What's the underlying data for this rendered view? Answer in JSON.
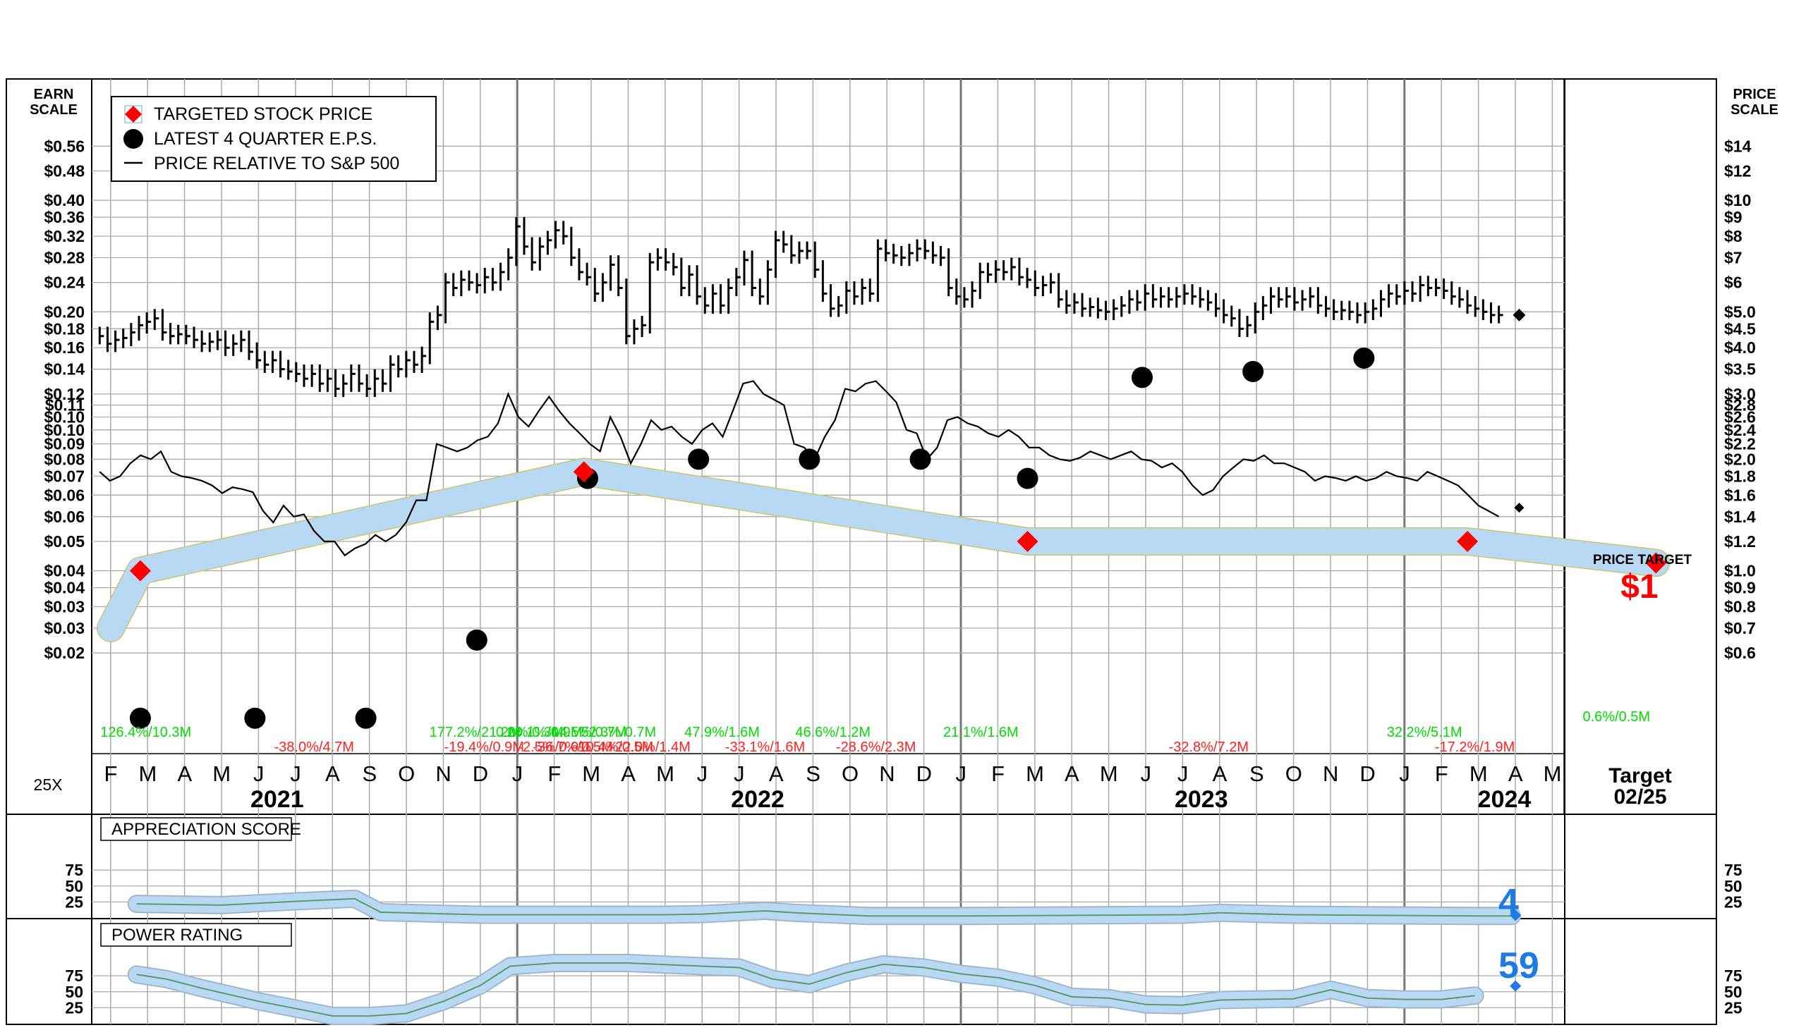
{
  "chart_data": {
    "type": "stock-chart",
    "left_scale_title": [
      "EARN",
      "SCALE"
    ],
    "right_scale_title": [
      "PRICE",
      "SCALE"
    ],
    "earn_ticks": [
      "$0.56",
      "$0.48",
      "$0.40",
      "$0.36",
      "$0.32",
      "$0.28",
      "$0.24",
      "$0.20",
      "$0.18",
      "$0.16",
      "$0.14",
      "$0.12",
      "$0.11",
      "$0.10",
      "$0.10",
      "$0.09",
      "$0.08",
      "$0.07",
      "$0.06",
      "$0.06",
      "$0.05",
      "$0.04",
      "$0.04",
      "$0.03",
      "$0.03",
      "$0.02"
    ],
    "price_ticks": [
      {
        "label": "$14",
        "v": 14
      },
      {
        "label": "$12",
        "v": 12
      },
      {
        "label": "$10",
        "v": 10
      },
      {
        "label": "$9",
        "v": 9
      },
      {
        "label": "$8",
        "v": 8
      },
      {
        "label": "$7",
        "v": 7
      },
      {
        "label": "$6",
        "v": 6
      },
      {
        "label": "$5.0",
        "v": 5.0
      },
      {
        "label": "$4.5",
        "v": 4.5
      },
      {
        "label": "$4.0",
        "v": 4.0
      },
      {
        "label": "$3.5",
        "v": 3.5
      },
      {
        "label": "$3.0",
        "v": 3.0
      },
      {
        "label": "$2.8",
        "v": 2.8
      },
      {
        "label": "$2.6",
        "v": 2.6
      },
      {
        "label": "$2.4",
        "v": 2.4
      },
      {
        "label": "$2.2",
        "v": 2.2
      },
      {
        "label": "$2.0",
        "v": 2.0
      },
      {
        "label": "$1.8",
        "v": 1.8
      },
      {
        "label": "$1.6",
        "v": 1.6
      },
      {
        "label": "$1.4",
        "v": 1.4
      },
      {
        "label": "$1.2",
        "v": 1.2
      },
      {
        "label": "$1.0",
        "v": 1.0
      },
      {
        "label": "$0.9",
        "v": 0.9
      },
      {
        "label": "$0.8",
        "v": 0.8
      },
      {
        "label": "$0.7",
        "v": 0.7
      },
      {
        "label": "$0.6",
        "v": 0.6
      }
    ],
    "months": [
      "F",
      "M",
      "A",
      "M",
      "J",
      "J",
      "A",
      "S",
      "O",
      "N",
      "D",
      "J",
      "F",
      "M",
      "A",
      "M",
      "J",
      "J",
      "A",
      "S",
      "O",
      "N",
      "D",
      "J",
      "F",
      "M",
      "A",
      "M",
      "J",
      "J",
      "A",
      "S",
      "O",
      "N",
      "D",
      "J",
      "F",
      "M",
      "A",
      "M"
    ],
    "years": [
      {
        "label": "2021",
        "m": 4.5
      },
      {
        "label": "2022",
        "m": 17.5
      },
      {
        "label": "2023",
        "m": 29.5
      },
      {
        "label": "2024",
        "m": 37.7
      }
    ],
    "target_label": [
      "Target",
      "02/25"
    ],
    "multiplier_label": "25X",
    "legend": [
      "TARGETED STOCK PRICE",
      "LATEST 4 QUARTER E.P.S.",
      "PRICE RELATIVE TO S&P 500"
    ],
    "price_target_caption": "PRICE TARGET",
    "price_target_value": "$1",
    "weekly_closes": [
      4.3,
      4.1,
      4.2,
      4.25,
      4.4,
      4.6,
      4.7,
      4.8,
      4.4,
      4.3,
      4.35,
      4.3,
      4.2,
      4.1,
      4.15,
      4.2,
      4.0,
      4.1,
      4.2,
      3.9,
      3.7,
      3.6,
      3.7,
      3.5,
      3.45,
      3.4,
      3.3,
      3.4,
      3.2,
      3.3,
      3.1,
      3.2,
      3.4,
      3.2,
      3.1,
      3.3,
      3.2,
      3.6,
      3.5,
      3.7,
      3.6,
      3.8,
      4.7,
      4.9,
      6.0,
      5.8,
      6.1,
      6.0,
      5.9,
      6.2,
      6.0,
      6.4,
      7.0,
      8.5,
      7.5,
      6.8,
      7.5,
      7.8,
      8.3,
      8.0,
      7.0,
      6.4,
      6.2,
      5.6,
      6.0,
      6.7,
      5.8,
      4.3,
      4.5,
      4.6,
      6.8,
      7.0,
      6.8,
      6.6,
      5.8,
      6.3,
      5.5,
      5.2,
      5.6,
      5.2,
      5.8,
      6.2,
      6.9,
      5.8,
      5.5,
      6.5,
      7.8,
      7.6,
      7.1,
      7.3,
      7.3,
      6.5,
      5.6,
      5.1,
      5.2,
      5.7,
      5.5,
      5.8,
      5.6,
      7.4,
      7.2,
      7.1,
      7.0,
      7.2,
      7.4,
      7.3,
      7.1,
      7.0,
      5.8,
      5.5,
      5.4,
      5.7,
      6.4,
      6.3,
      6.5,
      6.4,
      6.6,
      6.2,
      6.1,
      5.8,
      5.9,
      6.0,
      5.4,
      5.2,
      5.3,
      5.1,
      5.15,
      5.05,
      5.0,
      5.1,
      5.2,
      5.4,
      5.3,
      5.6,
      5.4,
      5.5,
      5.4,
      5.5,
      5.6,
      5.5,
      5.4,
      5.3,
      5.1,
      4.9,
      4.8,
      4.5,
      4.6,
      5.0,
      5.2,
      5.5,
      5.4,
      5.5,
      5.3,
      5.4,
      5.5,
      5.2,
      5.1,
      5.0,
      5.05,
      5.0,
      4.9,
      5.0,
      5.1,
      5.4,
      5.6,
      5.5,
      5.7,
      5.6,
      5.9,
      5.8,
      5.8,
      5.7,
      5.5,
      5.4,
      5.2,
      5.1,
      5.0,
      4.9,
      4.9
    ],
    "last_price": 4.9,
    "relative_line": [
      1.85,
      1.75,
      1.8,
      1.95,
      2.05,
      2.0,
      2.1,
      1.85,
      1.8,
      1.78,
      1.75,
      1.7,
      1.62,
      1.68,
      1.66,
      1.63,
      1.45,
      1.35,
      1.5,
      1.4,
      1.42,
      1.28,
      1.2,
      1.2,
      1.1,
      1.15,
      1.18,
      1.25,
      1.2,
      1.25,
      1.35,
      1.55,
      1.55,
      2.2,
      2.15,
      2.1,
      2.15,
      2.25,
      2.3,
      2.5,
      3.0,
      2.6,
      2.45,
      2.7,
      2.95,
      2.7,
      2.5,
      2.35,
      2.2,
      2.1,
      2.6,
      2.3,
      1.95,
      2.2,
      2.55,
      2.4,
      2.45,
      2.3,
      2.2,
      2.4,
      2.5,
      2.3,
      2.7,
      3.2,
      3.25,
      3.0,
      2.9,
      2.8,
      2.2,
      2.15,
      2.0,
      2.3,
      2.55,
      3.1,
      3.05,
      3.2,
      3.25,
      3.05,
      2.85,
      2.4,
      2.35,
      2.0,
      2.15,
      2.55,
      2.6,
      2.5,
      2.45,
      2.35,
      2.3,
      2.4,
      2.3,
      2.15,
      2.15,
      2.05,
      2.0,
      1.98,
      2.02,
      2.1,
      2.05,
      2.0,
      2.05,
      2.1,
      2.0,
      1.98,
      1.9,
      1.95,
      1.85,
      1.7,
      1.6,
      1.65,
      1.8,
      1.9,
      2.0,
      1.98,
      2.05,
      1.95,
      1.95,
      1.9,
      1.85,
      1.75,
      1.8,
      1.78,
      1.75,
      1.8,
      1.75,
      1.78,
      1.85,
      1.8,
      1.78,
      1.75,
      1.85,
      1.8,
      1.75,
      1.7,
      1.6,
      1.5,
      1.45,
      1.4
    ],
    "last_relative": 1.48,
    "eps_dots": [
      {
        "m": 0.8,
        "v": 0.016
      },
      {
        "m": 3.9,
        "v": 0.016
      },
      {
        "m": 6.9,
        "v": 0.016
      },
      {
        "m": 9.9,
        "v": 0.026
      },
      {
        "m": 12.9,
        "v": 0.071
      },
      {
        "m": 15.9,
        "v": 0.08
      },
      {
        "m": 18.9,
        "v": 0.08
      },
      {
        "m": 21.9,
        "v": 0.08
      },
      {
        "m": 24.8,
        "v": 0.071
      },
      {
        "m": 27.9,
        "v": 0.133
      },
      {
        "m": 30.9,
        "v": 0.138
      },
      {
        "m": 33.9,
        "v": 0.15
      }
    ],
    "target_points": [
      {
        "m": 0.8,
        "v": 1.0
      },
      {
        "m": 12.8,
        "v": 1.85
      },
      {
        "m": 24.8,
        "v": 1.2
      },
      {
        "m": 36.7,
        "v": 1.2
      },
      {
        "m": 41.8,
        "v": 1.05
      }
    ],
    "target_band_start": 0.7,
    "target_band_end": 1.05,
    "growth_labels": [
      {
        "text": "126.4%/10.3M",
        "m": 0.1,
        "row": 0,
        "color": "green"
      },
      {
        "text": "-38.0%/4.7M",
        "m": 4.8,
        "row": 1,
        "color": "red"
      },
      {
        "text": "177.2%/21.2M",
        "m": 9.0,
        "row": 0,
        "color": "green"
      },
      {
        "text": "-19.4%/0.9M",
        "m": 9.4,
        "row": 1,
        "color": "red"
      },
      {
        "text": "0.0%/0.3M",
        "m": 10.8,
        "row": 0,
        "color": "green"
      },
      {
        "text": "-2.5%/0.0%",
        "m": 11.4,
        "row": 1,
        "color": "red"
      },
      {
        "text": "20.1%/0.9M",
        "m": 11.1,
        "row": 0,
        "color": "green"
      },
      {
        "text": "-36.7%/0.5M",
        "m": 11.8,
        "row": 1,
        "color": "red"
      },
      {
        "text": "14.5%/0.7M",
        "m": 12.3,
        "row": 0,
        "color": "green"
      },
      {
        "text": "-10.4%/0.5M",
        "m": 12.9,
        "row": 1,
        "color": "red"
      },
      {
        "text": "52.3%/0.7M",
        "m": 13.1,
        "row": 0,
        "color": "green"
      },
      {
        "text": "-22.0%/1.4M",
        "m": 13.9,
        "row": 1,
        "color": "red"
      },
      {
        "text": "47.9%/1.6M",
        "m": 15.9,
        "row": 0,
        "color": "green"
      },
      {
        "text": "-33.1%/1.6M",
        "m": 17.0,
        "row": 1,
        "color": "red"
      },
      {
        "text": "46.6%/1.2M",
        "m": 18.9,
        "row": 0,
        "color": "green"
      },
      {
        "text": "-28.6%/2.3M",
        "m": 20.0,
        "row": 1,
        "color": "red"
      },
      {
        "text": "21.1%/1.6M",
        "m": 22.9,
        "row": 0,
        "color": "green"
      },
      {
        "text": "-32.8%/7.2M",
        "m": 29.0,
        "row": 1,
        "color": "red"
      },
      {
        "text": "32.2%/5.1M",
        "m": 34.9,
        "row": 0,
        "color": "green"
      },
      {
        "text": "-17.2%/1.9M",
        "m": 36.2,
        "row": 1,
        "color": "red"
      },
      {
        "text": "0.6%/0.5M",
        "m": 40.2,
        "row": -1,
        "color": "green"
      }
    ],
    "appreciation": {
      "title": "APPRECIATION SCORE",
      "ticks": [
        75,
        50,
        25
      ],
      "points": [
        {
          "m": 0.7,
          "v": 22
        },
        {
          "m": 3,
          "v": 20
        },
        {
          "m": 5,
          "v": 26
        },
        {
          "m": 6.6,
          "v": 30
        },
        {
          "m": 7.3,
          "v": 9
        },
        {
          "m": 10,
          "v": 5
        },
        {
          "m": 15,
          "v": 5
        },
        {
          "m": 16,
          "v": 6
        },
        {
          "m": 17.7,
          "v": 11
        },
        {
          "m": 18.5,
          "v": 8
        },
        {
          "m": 20.5,
          "v": 3
        },
        {
          "m": 23,
          "v": 3
        },
        {
          "m": 29,
          "v": 5
        },
        {
          "m": 30,
          "v": 8
        },
        {
          "m": 32,
          "v": 5
        },
        {
          "m": 37,
          "v": 3
        },
        {
          "m": 37.9,
          "v": 3
        }
      ],
      "current": "4",
      "current_value": 4
    },
    "power": {
      "title": "POWER RATING",
      "ticks": [
        75,
        50,
        25
      ],
      "points": [
        {
          "m": 0.7,
          "v": 77
        },
        {
          "m": 1.5,
          "v": 70
        },
        {
          "m": 2.5,
          "v": 55
        },
        {
          "m": 4,
          "v": 35
        },
        {
          "m": 5.5,
          "v": 18
        },
        {
          "m": 6,
          "v": 12
        },
        {
          "m": 7,
          "v": 12
        },
        {
          "m": 8,
          "v": 16
        },
        {
          "m": 9,
          "v": 35
        },
        {
          "m": 10,
          "v": 60
        },
        {
          "m": 10.8,
          "v": 90
        },
        {
          "m": 12,
          "v": 95
        },
        {
          "m": 14,
          "v": 95
        },
        {
          "m": 16,
          "v": 90
        },
        {
          "m": 17,
          "v": 88
        },
        {
          "m": 17.9,
          "v": 70
        },
        {
          "m": 18.9,
          "v": 62
        },
        {
          "m": 19.9,
          "v": 80
        },
        {
          "m": 20.9,
          "v": 93
        },
        {
          "m": 22,
          "v": 88
        },
        {
          "m": 23,
          "v": 78
        },
        {
          "m": 24,
          "v": 72
        },
        {
          "m": 25,
          "v": 60
        },
        {
          "m": 26,
          "v": 42
        },
        {
          "m": 27,
          "v": 40
        },
        {
          "m": 28,
          "v": 30
        },
        {
          "m": 29,
          "v": 29
        },
        {
          "m": 30,
          "v": 37
        },
        {
          "m": 32,
          "v": 39
        },
        {
          "m": 33,
          "v": 53
        },
        {
          "m": 34,
          "v": 40
        },
        {
          "m": 35,
          "v": 38
        },
        {
          "m": 36,
          "v": 38
        },
        {
          "m": 36.9,
          "v": 44
        }
      ],
      "current": "59",
      "current_value": 59
    }
  }
}
